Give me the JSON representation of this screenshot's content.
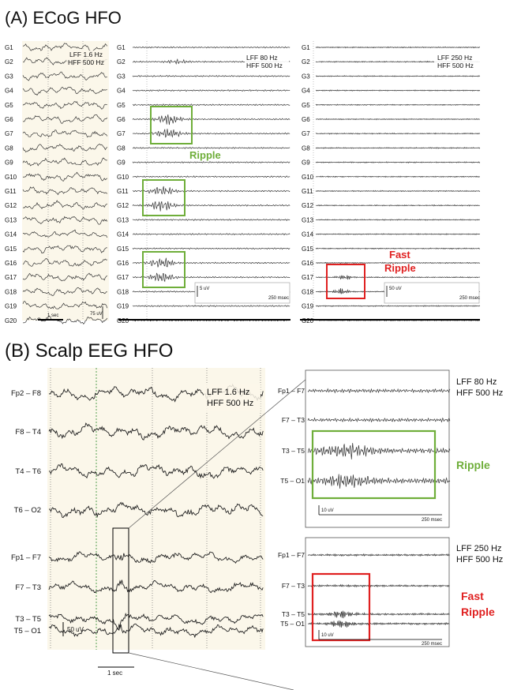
{
  "panel_a": {
    "title": "(A) ECoG HFO",
    "channels": [
      "G1",
      "G2",
      "G3",
      "G4",
      "G5",
      "G6",
      "G7",
      "G8",
      "G9",
      "G10",
      "G11",
      "G12",
      "G13",
      "G14",
      "G15",
      "G16",
      "G17",
      "G18",
      "G19",
      "G20"
    ],
    "col1": {
      "lff": "LFF 1.6 Hz",
      "hff": "HFF 500 Hz",
      "time_scale": "1 sec",
      "amp_scale": "75 uV"
    },
    "col2": {
      "lff": "LFF 80 Hz",
      "hff": "HFF 500 Hz",
      "time_scale": "250 msec",
      "amp_scale": "5 uV",
      "event_label": "Ripple"
    },
    "col3": {
      "lff": "LFF  250 Hz",
      "hff": "HFF 500 Hz",
      "time_scale": "250 msec",
      "amp_scale": "50 uV",
      "event_label_line1": "Fast",
      "event_label_line2": "Ripple"
    }
  },
  "panel_b": {
    "title": "(B) Scalp EEG HFO",
    "raw": {
      "channels": [
        "Fp2 – F8",
        "F8 – T4",
        "T4 – T6",
        "T6 – O2",
        "Fp1 – F7",
        "F7 – T3",
        "T3 – T5",
        "T5 – O1"
      ],
      "lff": "LFF 1.6 Hz",
      "hff": "HFF 500 Hz",
      "amp_scale": "50 uV",
      "time_scale": "1 sec"
    },
    "ripple": {
      "channels": [
        "Fp1 – F7",
        "F7 – T3",
        "T3 – T5",
        "T5 – O1"
      ],
      "lff": "LFF 80 Hz",
      "hff": "HFF 500 Hz",
      "amp_scale": "10 uV",
      "time_scale": "250 msec",
      "event_label": "Ripple"
    },
    "fast_ripple": {
      "channels": [
        "Fp1 – F7",
        "F7 – T3",
        "T3 – T5",
        "T5 – O1"
      ],
      "lff": "LFF  250 Hz",
      "hff": "HFF 500 Hz",
      "amp_scale": "10 uV",
      "time_scale": "250 msec",
      "event_label_line1": "Fast",
      "event_label_line2": "Ripple"
    }
  },
  "colors": {
    "ripple_box": "#6fae3a",
    "fast_ripple_box": "#e02020",
    "ripple_text": "#6fae3a",
    "fast_ripple_text": "#e02020",
    "panel_bg": "#fbf7ea",
    "marker_line": "#2e8b2e"
  }
}
